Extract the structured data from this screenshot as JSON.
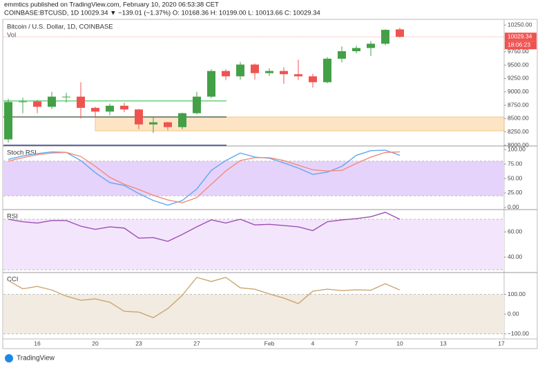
{
  "header": {
    "publisher": "emmtics published on TradingView.com, February 10, 2020 06:53:38 CET",
    "symbol": "COINBASE:BTCUSD, 1D  10029.34 ▼ −139.01 (−1.37%) O: 10168.36 H: 10199.00 L: 10013.66 C: 10029.34"
  },
  "footer": "TradingView",
  "chart_data": [
    {
      "type": "candlestick",
      "title": "Bitcoin / U.S. Dollar, 1D, COINBASE",
      "subtitle": "Vol",
      "categories": [
        null,
        null,
        "16",
        null,
        null,
        null,
        "20",
        null,
        null,
        "23",
        null,
        null,
        null,
        "27",
        null,
        null,
        null,
        null,
        "Feb",
        null,
        null,
        "4",
        null,
        null,
        "7",
        null,
        null,
        "10",
        null,
        null,
        "13",
        null,
        null,
        null,
        "17"
      ],
      "open": [
        8110,
        8810,
        8820,
        8720,
        8900,
        8910,
        8700,
        8630,
        8740,
        8670,
        8390,
        8430,
        8340,
        8600,
        8910,
        9390,
        9290,
        9510,
        9350,
        9390,
        9330,
        9290,
        9180,
        9620,
        9760,
        9820,
        9900,
        10168.36,
        null,
        null,
        null,
        null,
        null,
        null,
        null
      ],
      "high": [
        8870,
        8890,
        8850,
        9000,
        8980,
        9180,
        8720,
        8780,
        8800,
        8680,
        8520,
        8440,
        8610,
        9000,
        9420,
        9420,
        9560,
        9530,
        9440,
        9460,
        9600,
        9340,
        9650,
        9850,
        9860,
        9950,
        10170,
        10199,
        null,
        null,
        null,
        null,
        null,
        null,
        null
      ],
      "low": [
        8050,
        8600,
        8600,
        8680,
        8800,
        8500,
        8530,
        8560,
        8620,
        8300,
        8230,
        8280,
        8300,
        8580,
        8880,
        9220,
        9230,
        9230,
        9300,
        9150,
        9220,
        9080,
        9160,
        9550,
        9720,
        9670,
        9870,
        10013.66,
        null,
        null,
        null,
        null,
        null,
        null,
        null
      ],
      "close": [
        8810,
        8820,
        8720,
        8910,
        8910,
        8700,
        8630,
        8740,
        8670,
        8390,
        8430,
        8340,
        8600,
        8910,
        9390,
        9290,
        9510,
        9350,
        9390,
        9330,
        9290,
        9180,
        9620,
        9760,
        9820,
        9900,
        10160,
        10029.34,
        null,
        null,
        null,
        null,
        null,
        null,
        null
      ],
      "up_color": "#43a047",
      "down_color": "#ef5350",
      "ylim": [
        8000,
        10330
      ],
      "yticks": [
        {
          "value": 8000,
          "label": "8000.00"
        },
        {
          "value": 8250,
          "label": "8250.00"
        },
        {
          "value": 8500,
          "label": "8500.00"
        },
        {
          "value": 8750,
          "label": "8750.00"
        },
        {
          "value": 9000,
          "label": "9000.00"
        },
        {
          "value": 9250,
          "label": "9250.00"
        },
        {
          "value": 9500,
          "label": "9500.00"
        },
        {
          "value": 9750,
          "label": "9750.00"
        },
        {
          "value": 10250,
          "label": "10250.00"
        }
      ],
      "last_price": 10029.34,
      "countdown": "18:06:23",
      "last_price_color": "#ef5350",
      "levels": [
        {
          "value": 8830,
          "color": "#66d17a"
        },
        {
          "value": 8530,
          "color": "#1b3a1b"
        },
        {
          "value": 8000,
          "color": "#1a237e"
        }
      ],
      "band": {
        "range": [
          8270,
          8530
        ],
        "color": "#fde4c4"
      }
    },
    {
      "type": "line",
      "title": "Stoch RSI",
      "ylim": [
        -2.5,
        105
      ],
      "yticks": [
        {
          "value": 0,
          "label": "0.00"
        },
        {
          "value": 25,
          "label": "25.00"
        },
        {
          "value": 50,
          "label": "50.00"
        },
        {
          "value": 75,
          "label": "75.00"
        },
        {
          "value": 100,
          "label": "100.00"
        }
      ],
      "band": [
        20,
        80
      ],
      "band_color": "#e6d3fb",
      "series": [
        {
          "color": "#5ea8f0",
          "values": [
            83,
            89,
            93,
            96,
            95,
            81,
            60,
            43,
            38,
            24,
            12,
            4,
            12,
            32,
            64,
            81,
            94,
            87,
            85,
            77,
            68,
            57,
            61,
            71,
            90,
            98,
            99,
            90
          ]
        },
        {
          "color": "#f48a7a",
          "values": [
            80,
            86,
            91,
            94,
            95,
            88,
            71,
            52,
            40,
            31,
            21,
            13,
            8,
            17,
            40,
            63,
            81,
            86,
            86,
            81,
            73,
            65,
            63,
            64,
            76,
            87,
            95,
            96
          ]
        }
      ]
    },
    {
      "type": "line",
      "title": "RSI",
      "ylim": [
        28.9,
        77.1
      ],
      "yticks": [
        {
          "value": 40,
          "label": "40.00"
        },
        {
          "value": 60,
          "label": "60.00"
        }
      ],
      "band": [
        30,
        70
      ],
      "band_color": "#f3e6fc",
      "series": [
        {
          "color": "#9c4fb4",
          "values": [
            70,
            68,
            67,
            69,
            69,
            64.5,
            62,
            64,
            63,
            55,
            55.5,
            52.5,
            58,
            64,
            69.5,
            67,
            70,
            65.5,
            66,
            65,
            64,
            61,
            68,
            69.5,
            70.5,
            72,
            75.5,
            70
          ]
        }
      ]
    },
    {
      "type": "line",
      "title": "CCI",
      "ylim": [
        -126,
        207
      ],
      "yticks": [
        {
          "value": -100,
          "label": "−100.00"
        },
        {
          "value": 0,
          "label": "0.00"
        },
        {
          "value": 100,
          "label": "100.00"
        }
      ],
      "band": [
        -100,
        100
      ],
      "band_color": "#f2ebe1",
      "series": [
        {
          "color": "#c9a670",
          "values": [
            170,
            128,
            140,
            122,
            91,
            70,
            77,
            60,
            14,
            10,
            -18,
            28,
            95,
            186,
            165,
            186,
            133,
            126,
            102,
            81,
            53,
            116,
            126,
            119,
            123,
            121,
            154,
            122
          ]
        }
      ]
    }
  ]
}
